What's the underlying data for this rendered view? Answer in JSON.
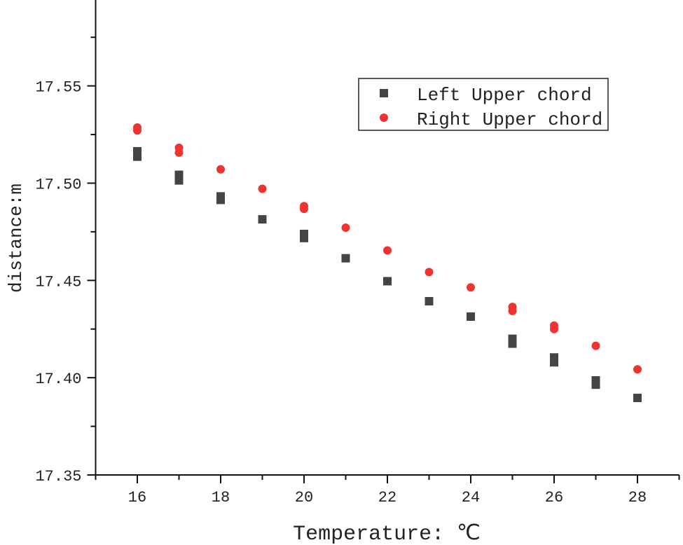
{
  "chart_data": {
    "type": "scatter",
    "title": "",
    "xlabel": "Temperature: ℃",
    "ylabel": "distance:m",
    "xlim": [
      15,
      29
    ],
    "ylim": [
      17.35,
      17.592
    ],
    "xticks": [
      16,
      18,
      20,
      22,
      24,
      26,
      28
    ],
    "yticks": [
      17.35,
      17.4,
      17.45,
      17.5,
      17.55
    ],
    "ytick_labels": [
      "17.35",
      "17.40",
      "17.45",
      "17.50",
      "17.55"
    ],
    "grid": false,
    "legend_position": "top-right",
    "series": [
      {
        "name": "Left Upper chord",
        "marker": "square",
        "color": "#444444",
        "points": [
          [
            16,
            17.5164
          ],
          [
            16,
            17.5136
          ],
          [
            17,
            17.5043
          ],
          [
            17,
            17.5014
          ],
          [
            18,
            17.4932
          ],
          [
            18,
            17.4914
          ],
          [
            19,
            17.4814
          ],
          [
            20,
            17.4739
          ],
          [
            20,
            17.4718
          ],
          [
            21,
            17.4614
          ],
          [
            22,
            17.4496
          ],
          [
            23,
            17.4393
          ],
          [
            24,
            17.4314
          ],
          [
            25,
            17.42
          ],
          [
            25,
            17.4175
          ],
          [
            26,
            17.4104
          ],
          [
            26,
            17.4079
          ],
          [
            27,
            17.3986
          ],
          [
            27,
            17.3964
          ],
          [
            28,
            17.3896
          ]
        ]
      },
      {
        "name": "Right Upper chord",
        "marker": "circle",
        "color": "#ee3333",
        "points": [
          [
            16,
            17.5286
          ],
          [
            16,
            17.5271
          ],
          [
            17,
            17.5182
          ],
          [
            17,
            17.5157
          ],
          [
            18,
            17.5071
          ],
          [
            19,
            17.4971
          ],
          [
            20,
            17.4882
          ],
          [
            20,
            17.4868
          ],
          [
            21,
            17.4771
          ],
          [
            22,
            17.4654
          ],
          [
            23,
            17.4543
          ],
          [
            24,
            17.4464
          ],
          [
            25,
            17.4364
          ],
          [
            25,
            17.4343
          ],
          [
            26,
            17.4268
          ],
          [
            26,
            17.425
          ],
          [
            27,
            17.4164
          ],
          [
            28,
            17.4043
          ]
        ]
      }
    ]
  }
}
